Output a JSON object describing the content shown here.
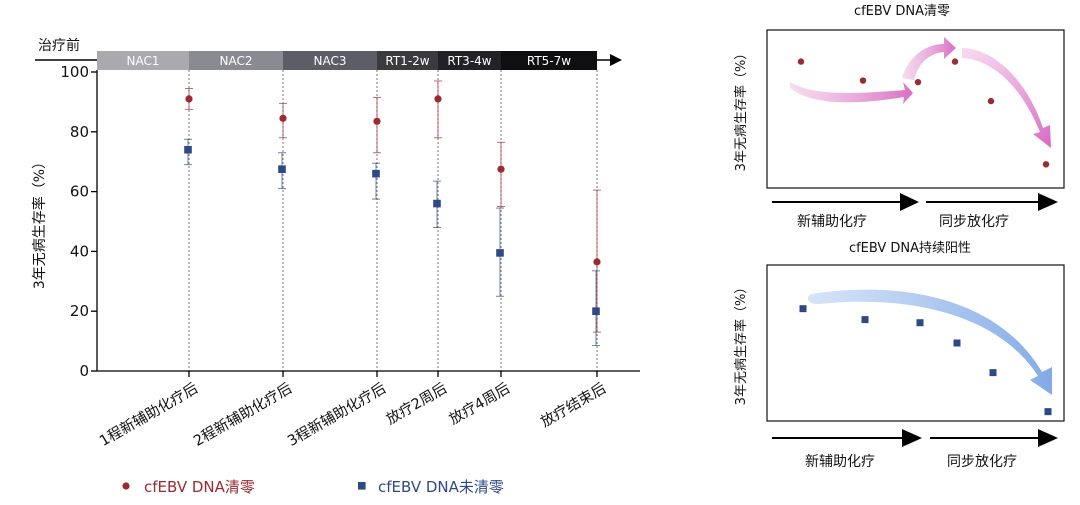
{
  "chart_data": [
    {
      "type": "scatter",
      "title": "",
      "phase_label": "治疗前",
      "phases": [
        "NAC1",
        "NAC2",
        "NAC3",
        "RT1-2w",
        "RT3-4w",
        "RT5-7w"
      ],
      "phase_colors": [
        "#a9a9ae",
        "#8a8b92",
        "#5c5d66",
        "#3a3a3f",
        "#222226",
        "#0f0f12"
      ],
      "ylabel": "3年无病生存率（%）",
      "xlabel": "",
      "ylim": [
        0,
        100
      ],
      "yticks": [
        "0",
        "20",
        "40",
        "60",
        "80",
        "100"
      ],
      "categories": [
        "1程新辅助化疗后",
        "2程新辅助化疗后",
        "3程新辅助化疗后",
        "放疗2周后",
        "放疗4周后",
        "放疗结束后"
      ],
      "series": [
        {
          "name": "cfEBV DNA清零",
          "color": "#9b2a31",
          "marker": "circle",
          "values": [
            91,
            84.5,
            83.5,
            91,
            67.5,
            36.5
          ],
          "err_low": [
            87.5,
            78,
            73,
            78,
            55,
            13
          ],
          "err_high": [
            94.5,
            89.5,
            91.5,
            97,
            76.5,
            60.5
          ]
        },
        {
          "name": "cfEBV DNA未清零",
          "color": "#2e4a86",
          "marker": "square",
          "values": [
            74,
            67.5,
            66,
            56,
            39.5,
            20
          ],
          "err_low": [
            69,
            61,
            57.5,
            48,
            25,
            8.5
          ],
          "err_high": [
            77.5,
            73,
            69.5,
            63.5,
            54.5,
            33.5
          ]
        }
      ],
      "grid": false,
      "legend": "bottom"
    },
    {
      "type": "scatter",
      "title": "cfEBV DNA清零",
      "ylabel": "3年无病生存率（%）",
      "phases": [
        "新辅助化疗",
        "同步放化疗"
      ],
      "color": "#9b2a31",
      "values": [
        0.6,
        0.48,
        0.47,
        0.6,
        0.35,
        -0.05
      ],
      "ylim": [
        -0.2,
        0.8
      ]
    },
    {
      "type": "scatter",
      "title": "cfEBV DNA持续阳性",
      "ylabel": "3年无病生存率（%）",
      "phases": [
        "新辅助化疗",
        "同步放化疗"
      ],
      "color": "#2e4a86",
      "values": [
        0.72,
        0.65,
        0.63,
        0.5,
        0.31,
        0.06
      ],
      "ylim": [
        0,
        1
      ]
    }
  ]
}
